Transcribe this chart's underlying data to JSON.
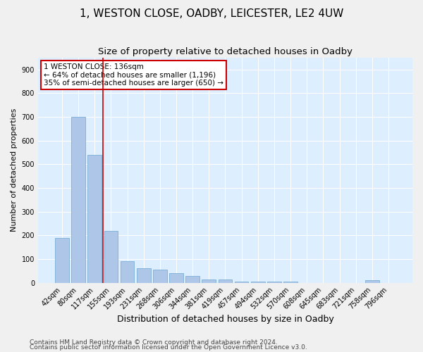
{
  "title1": "1, WESTON CLOSE, OADBY, LEICESTER, LE2 4UW",
  "title2": "Size of property relative to detached houses in Oadby",
  "xlabel": "Distribution of detached houses by size in Oadby",
  "ylabel": "Number of detached properties",
  "categories": [
    "42sqm",
    "80sqm",
    "117sqm",
    "155sqm",
    "193sqm",
    "231sqm",
    "268sqm",
    "306sqm",
    "344sqm",
    "381sqm",
    "419sqm",
    "457sqm",
    "494sqm",
    "532sqm",
    "570sqm",
    "608sqm",
    "645sqm",
    "683sqm",
    "721sqm",
    "758sqm",
    "796sqm"
  ],
  "values": [
    190,
    700,
    540,
    220,
    90,
    60,
    55,
    40,
    30,
    15,
    15,
    5,
    5,
    5,
    5,
    0,
    0,
    0,
    0,
    10,
    0
  ],
  "bar_color": "#aec6e8",
  "bar_edge_color": "#7aafd4",
  "vline_x": 2.5,
  "vline_color": "#cc0000",
  "annotation_text": "1 WESTON CLOSE: 136sqm\n← 64% of detached houses are smaller (1,196)\n35% of semi-detached houses are larger (650) →",
  "annotation_box_facecolor": "#ffffff",
  "annotation_box_edgecolor": "#cc0000",
  "ylim": [
    0,
    950
  ],
  "yticks": [
    0,
    100,
    200,
    300,
    400,
    500,
    600,
    700,
    800,
    900
  ],
  "footer1": "Contains HM Land Registry data © Crown copyright and database right 2024.",
  "footer2": "Contains public sector information licensed under the Open Government Licence v3.0.",
  "fig_bg_color": "#f0f0f0",
  "plot_bg_color": "#ddeeff",
  "grid_color": "#ffffff",
  "title1_fontsize": 11,
  "title2_fontsize": 9.5,
  "xlabel_fontsize": 9,
  "ylabel_fontsize": 8,
  "tick_fontsize": 7,
  "annotation_fontsize": 7.5,
  "footer_fontsize": 6.5
}
